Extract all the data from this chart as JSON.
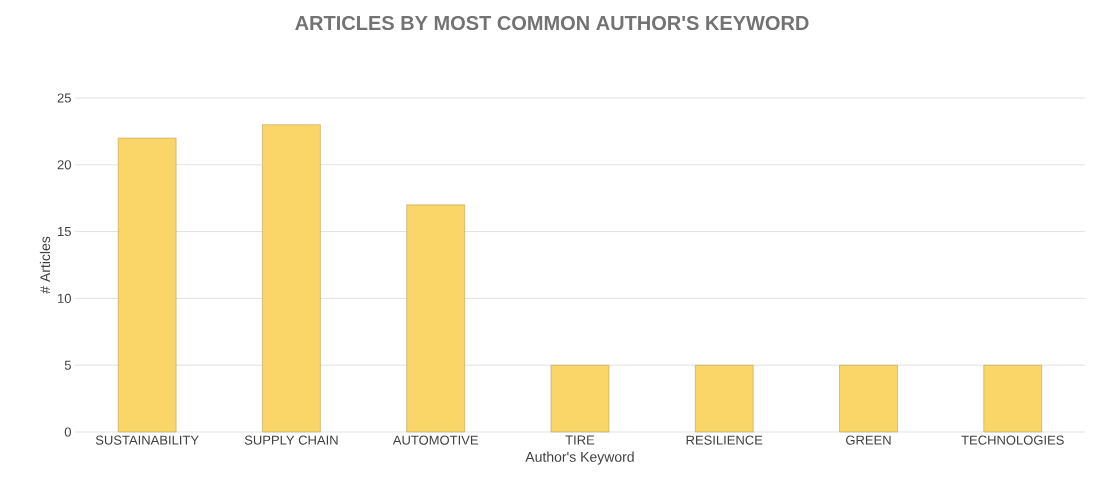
{
  "chart_data": {
    "type": "bar",
    "title": "ARTICLES BY MOST COMMON AUTHOR'S KEYWORD",
    "xlabel": "Author's Keyword",
    "ylabel": "# Articles",
    "categories": [
      "SUSTAINABILITY",
      "SUPPLY CHAIN",
      "AUTOMOTIVE",
      "TIRE",
      "RESILIENCE",
      "GREEN",
      "TECHNOLOGIES"
    ],
    "values": [
      22,
      23,
      17,
      5,
      5,
      5,
      5
    ],
    "color": "#f9d667",
    "ylim": [
      0,
      25
    ],
    "yticks": [
      0,
      5,
      10,
      15,
      20,
      25
    ],
    "grid": "y"
  }
}
